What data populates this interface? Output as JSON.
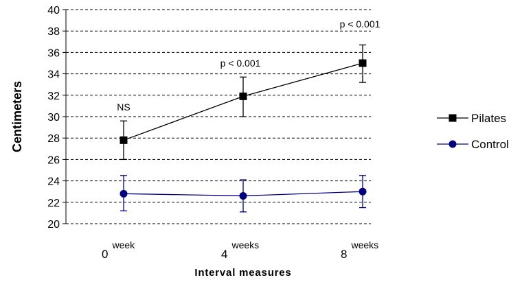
{
  "chart_data": {
    "type": "line",
    "categories": [
      {
        "num": "0",
        "unit": "week"
      },
      {
        "num": "4",
        "unit": "weeks"
      },
      {
        "num": "8",
        "unit": "weeks"
      }
    ],
    "series": [
      {
        "name": "Pilates",
        "values": [
          27.8,
          31.9,
          35.0
        ],
        "error_low": [
          26.0,
          30.0,
          33.2
        ],
        "error_high": [
          29.6,
          33.7,
          36.7
        ],
        "color": "#000000",
        "marker": "square"
      },
      {
        "name": "Control",
        "values": [
          22.8,
          22.6,
          23.0
        ],
        "error_low": [
          21.2,
          21.1,
          21.5
        ],
        "error_high": [
          24.5,
          24.1,
          24.5
        ],
        "color": "#000080",
        "marker": "circle"
      }
    ],
    "annotations": [
      "NS",
      "p < 0.001",
      "p < 0.001"
    ],
    "xlabel": "Interval measures",
    "ylabel": "Centimeters",
    "ylim": [
      20,
      40
    ],
    "yticks": [
      "20",
      "22",
      "24",
      "26",
      "28",
      "30",
      "32",
      "34",
      "36",
      "38",
      "40"
    ],
    "grid": "horizontal-dashed",
    "legend_position": "right"
  }
}
